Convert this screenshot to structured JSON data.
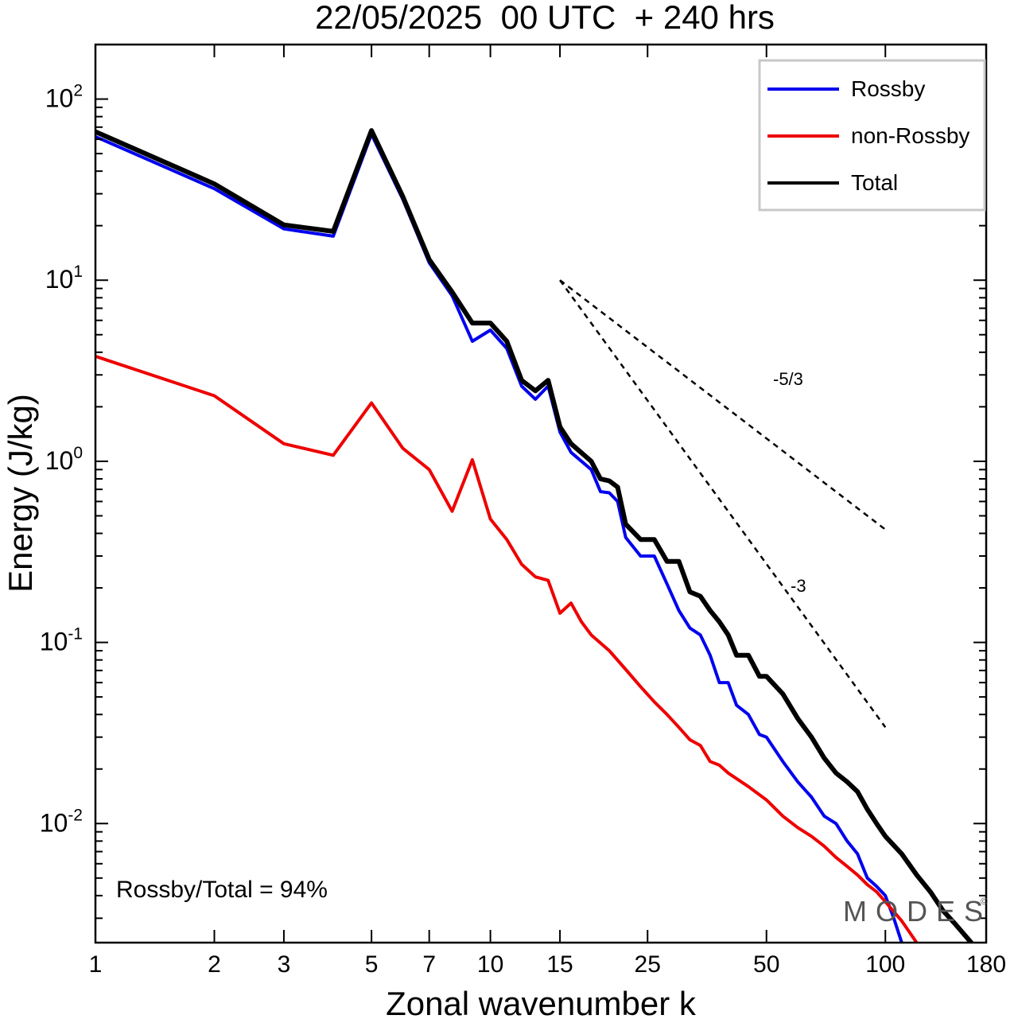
{
  "chart_data": {
    "type": "line",
    "title": "22/05/2025  00 UTC  + 240 hrs",
    "xlabel": "Zonal wavenumber k",
    "ylabel": "Energy (J/kg)",
    "x_scale": "log",
    "y_scale": "log",
    "xlim": [
      1,
      180
    ],
    "ylim": [
      0.0022,
      200
    ],
    "x_ticks": [
      1,
      2,
      3,
      5,
      7,
      10,
      15,
      25,
      50,
      100,
      180
    ],
    "x_tick_labels": [
      "1",
      "2",
      "3",
      "5",
      "7",
      "10",
      "15",
      "25",
      "50",
      "100",
      "180"
    ],
    "y_ticks": [
      0.01,
      0.1,
      1,
      10,
      100
    ],
    "y_tick_labels": [
      {
        "base": "10",
        "exp": "-2"
      },
      {
        "base": "10",
        "exp": "-1"
      },
      {
        "base": "10",
        "exp": "0"
      },
      {
        "base": "10",
        "exp": "1"
      },
      {
        "base": "10",
        "exp": "2"
      }
    ],
    "legend_position": "top-right",
    "grid": false,
    "series": [
      {
        "name": "Rossby",
        "color": "#0000ee",
        "x": [
          1,
          2,
          3,
          4,
          5,
          6,
          7,
          8,
          9,
          10,
          11,
          12,
          13,
          14,
          15,
          16,
          18,
          19,
          20,
          21,
          22,
          24,
          26,
          28,
          30,
          32,
          34,
          36,
          38,
          40,
          42,
          45,
          48,
          50,
          55,
          60,
          65,
          70,
          75,
          80,
          85,
          90,
          95,
          100,
          105,
          110
        ],
        "values": [
          62,
          32,
          19.2,
          17.5,
          64,
          28,
          12.5,
          8.2,
          4.6,
          5.3,
          4.2,
          2.6,
          2.2,
          2.6,
          1.45,
          1.12,
          0.9,
          0.68,
          0.67,
          0.6,
          0.38,
          0.3,
          0.3,
          0.21,
          0.15,
          0.12,
          0.11,
          0.085,
          0.06,
          0.06,
          0.045,
          0.04,
          0.031,
          0.03,
          0.022,
          0.017,
          0.014,
          0.011,
          0.01,
          0.008,
          0.0068,
          0.005,
          0.0045,
          0.004,
          0.003,
          0.0022
        ]
      },
      {
        "name": "non-Rossby",
        "color": "#ee0000",
        "x": [
          1,
          2,
          3,
          4,
          5,
          6,
          7,
          8,
          9,
          10,
          11,
          12,
          13,
          14,
          15,
          16,
          17,
          18,
          20,
          22,
          24,
          26,
          28,
          30,
          32,
          34,
          36,
          38,
          40,
          45,
          50,
          55,
          60,
          65,
          70,
          75,
          80,
          85,
          90,
          95,
          100,
          110,
          120
        ],
        "values": [
          3.8,
          2.3,
          1.25,
          1.08,
          2.1,
          1.18,
          0.9,
          0.53,
          1.02,
          0.48,
          0.37,
          0.27,
          0.23,
          0.22,
          0.145,
          0.165,
          0.13,
          0.11,
          0.09,
          0.071,
          0.057,
          0.047,
          0.04,
          0.034,
          0.029,
          0.027,
          0.022,
          0.021,
          0.019,
          0.016,
          0.0135,
          0.011,
          0.0095,
          0.0085,
          0.0075,
          0.0065,
          0.0058,
          0.0052,
          0.0046,
          0.0042,
          0.0037,
          0.0029,
          0.0022
        ]
      },
      {
        "name": "Total",
        "color": "#000000",
        "x": [
          1,
          2,
          3,
          4,
          5,
          6,
          7,
          8,
          9,
          10,
          11,
          12,
          13,
          14,
          15,
          16,
          18,
          19,
          20,
          21,
          22,
          24,
          26,
          28,
          30,
          32,
          34,
          36,
          38,
          40,
          42,
          45,
          48,
          50,
          55,
          60,
          65,
          70,
          75,
          80,
          85,
          90,
          95,
          100,
          110,
          120,
          130,
          140,
          150,
          165
        ],
        "values": [
          66,
          34,
          20.2,
          18.6,
          67,
          29,
          13,
          8.6,
          5.8,
          5.8,
          4.6,
          2.8,
          2.45,
          2.8,
          1.55,
          1.25,
          1.0,
          0.8,
          0.78,
          0.72,
          0.45,
          0.37,
          0.37,
          0.28,
          0.28,
          0.19,
          0.18,
          0.15,
          0.13,
          0.11,
          0.085,
          0.085,
          0.065,
          0.065,
          0.052,
          0.038,
          0.03,
          0.023,
          0.019,
          0.017,
          0.015,
          0.012,
          0.01,
          0.0085,
          0.0068,
          0.0052,
          0.0042,
          0.0033,
          0.0028,
          0.0022
        ]
      }
    ],
    "reference_lines": [
      {
        "label": "-5/3",
        "x": [
          15,
          100
        ],
        "values": [
          10,
          0.42
        ]
      },
      {
        "label": "-3",
        "x": [
          15,
          100
        ],
        "values": [
          10,
          0.034
        ]
      }
    ],
    "annotations": {
      "ratio_text": "Rossby/Total = 94%",
      "watermark": "MODES",
      "watermark_mark": "©"
    }
  }
}
